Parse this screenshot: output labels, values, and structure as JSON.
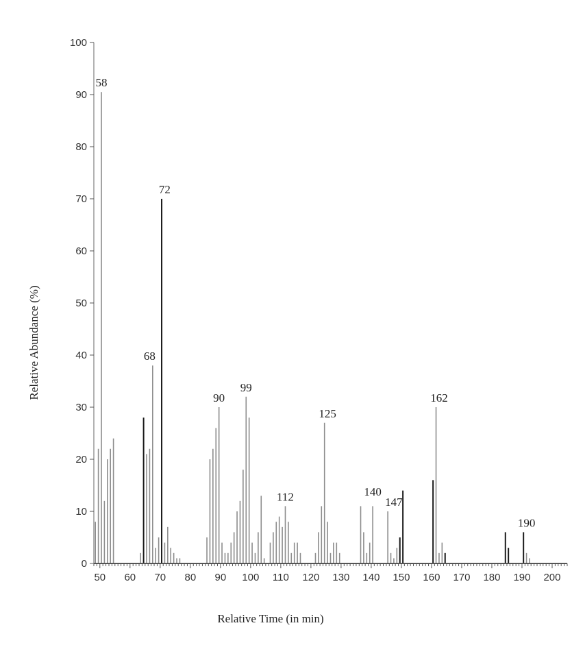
{
  "chart_data": {
    "type": "bar",
    "title": "",
    "xlabel": "Relative Time (in min)",
    "ylabel": "Relative Abundance (%)",
    "xlim": [
      48,
      205
    ],
    "ylim": [
      0,
      100
    ],
    "x_ticks": [
      50,
      60,
      70,
      80,
      90,
      100,
      110,
      120,
      130,
      140,
      150,
      160,
      170,
      180,
      190,
      200
    ],
    "y_ticks": [
      0,
      10,
      20,
      30,
      40,
      50,
      60,
      70,
      80,
      90,
      100
    ],
    "grid": false,
    "colors": {
      "grey_bar": "#8c8c8c",
      "dark_bar": "#1a1a1a",
      "axis": "#555555"
    },
    "series": [
      {
        "x": [
          48.5,
          49.5,
          50.5,
          51.5,
          52.5,
          53.5,
          54.5,
          63.5,
          64.5,
          65.5,
          66.5,
          67.5,
          68.5,
          69.5,
          70.5,
          71.5,
          72.5,
          73.5,
          74.5,
          75.5,
          76.5,
          85.5,
          86.5,
          87.5,
          88.5,
          89.5,
          90.5,
          91.5,
          92.5,
          93.5,
          94.5,
          95.5,
          96.5,
          97.5,
          98.5,
          99.5,
          100.5,
          101.5,
          102.5,
          103.5,
          104.5,
          106.5,
          107.5,
          108.5,
          109.5,
          110.5,
          111.5,
          112.5,
          113.5,
          114.5,
          115.5,
          116.5,
          121.5,
          122.5,
          123.5,
          124.5,
          125.5,
          126.5,
          127.5,
          128.5,
          129.5,
          136.5,
          137.5,
          138.5,
          139.5,
          140.5,
          145.5,
          146.5,
          147.5,
          148.5,
          149.5,
          150.5,
          160.5,
          161.5,
          162.5,
          163.5,
          164.5,
          184.5,
          185.5,
          190.5,
          191.5,
          192.5
        ],
        "values": [
          8,
          22,
          90.5,
          12,
          20,
          22,
          24,
          2,
          28,
          21,
          22,
          38,
          3,
          5,
          70,
          4,
          7,
          3,
          2,
          1,
          1,
          5,
          20,
          22,
          26,
          30,
          4,
          2,
          2,
          4,
          6,
          10,
          12,
          18,
          32,
          28,
          4,
          2,
          6,
          13,
          1,
          4,
          6,
          8,
          9,
          7,
          11,
          8,
          2,
          4,
          4,
          2,
          2,
          6,
          11,
          27,
          8,
          2,
          4,
          4,
          2,
          11,
          6,
          2,
          4,
          11,
          10,
          2,
          1,
          3,
          5,
          14,
          16,
          30,
          2,
          4,
          2,
          6,
          3,
          6,
          2,
          1
        ],
        "shades": [
          "g",
          "g",
          "g",
          "g",
          "g",
          "g",
          "g",
          "g",
          "d",
          "g",
          "g",
          "g",
          "g",
          "g",
          "d",
          "g",
          "g",
          "g",
          "g",
          "g",
          "g",
          "g",
          "g",
          "g",
          "g",
          "g",
          "g",
          "g",
          "g",
          "g",
          "g",
          "g",
          "g",
          "g",
          "g",
          "g",
          "g",
          "g",
          "g",
          "g",
          "g",
          "g",
          "g",
          "g",
          "g",
          "g",
          "g",
          "g",
          "g",
          "g",
          "g",
          "g",
          "g",
          "g",
          "g",
          "g",
          "g",
          "g",
          "g",
          "g",
          "g",
          "g",
          "g",
          "g",
          "g",
          "g",
          "g",
          "g",
          "g",
          "g",
          "d",
          "d",
          "d",
          "g",
          "g",
          "g",
          "d",
          "d",
          "d",
          "d",
          "g"
        ]
      }
    ],
    "peak_labels": [
      {
        "text": "58",
        "x": 50.5,
        "y": 90.5
      },
      {
        "text": "72",
        "x": 71.5,
        "y": 70
      },
      {
        "text": "68",
        "x": 66.5,
        "y": 38
      },
      {
        "text": "90",
        "x": 89.5,
        "y": 30
      },
      {
        "text": "99",
        "x": 98.5,
        "y": 32
      },
      {
        "text": "112",
        "x": 111.5,
        "y": 11
      },
      {
        "text": "125",
        "x": 125.5,
        "y": 27
      },
      {
        "text": "140",
        "x": 140.5,
        "y": 12
      },
      {
        "text": "147",
        "x": 147.5,
        "y": 10
      },
      {
        "text": "162",
        "x": 162.5,
        "y": 30
      },
      {
        "text": "190",
        "x": 191.5,
        "y": 6
      }
    ]
  }
}
